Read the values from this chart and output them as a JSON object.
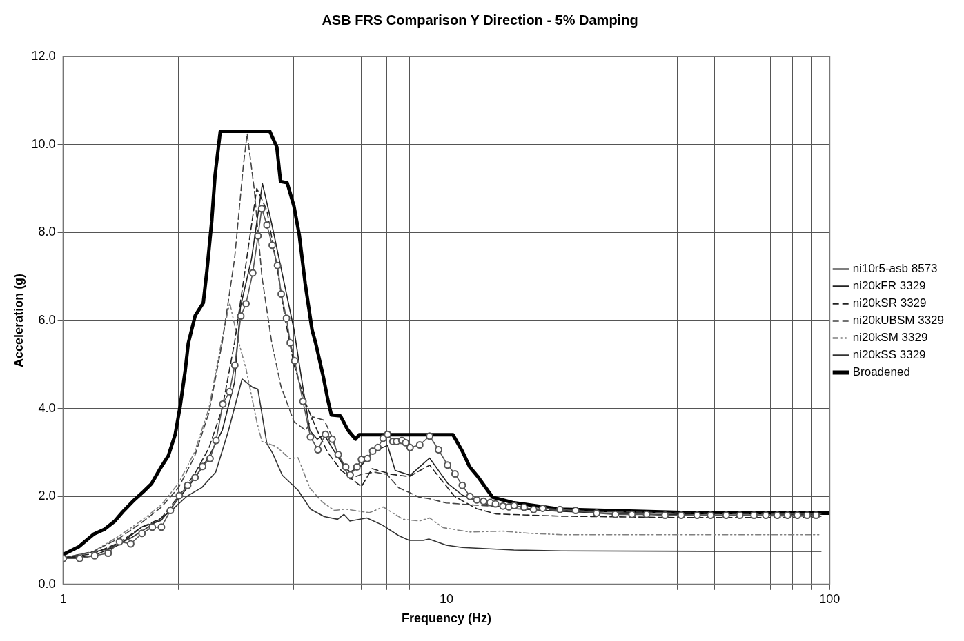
{
  "chart_data": {
    "type": "line",
    "title": "ASB FRS Comparison Y Direction - 5% Damping",
    "xlabel": "Frequency (Hz)",
    "ylabel": "Acceleration (g)",
    "log": "x",
    "grid": true,
    "legend": "right",
    "xlim": [
      1,
      100
    ],
    "xticks": [
      1,
      {
        "value": 2,
        "label": null
      },
      {
        "value": 3,
        "label": null
      },
      {
        "value": 4,
        "label": null
      },
      {
        "value": 5,
        "label": null
      },
      {
        "value": 6,
        "label": null
      },
      {
        "value": 7,
        "label": null
      },
      {
        "value": 8,
        "label": null
      },
      {
        "value": 9,
        "label": null
      },
      10,
      {
        "value": 20,
        "label": null
      },
      {
        "value": 30,
        "label": null
      },
      {
        "value": 40,
        "label": null
      },
      {
        "value": 50,
        "label": null
      },
      {
        "value": 60,
        "label": null
      },
      {
        "value": 70,
        "label": null
      },
      {
        "value": 80,
        "label": null
      },
      {
        "value": 90,
        "label": null
      },
      100
    ],
    "ylim": [
      0,
      12
    ],
    "yticks": [
      {
        "value": 0,
        "label": "0.0"
      },
      {
        "value": 2,
        "label": "2.0"
      },
      {
        "value": 4,
        "label": "4.0"
      },
      {
        "value": 6,
        "label": "6.0"
      },
      {
        "value": 8,
        "label": "8.0"
      },
      {
        "value": 10,
        "label": "10.0"
      },
      {
        "value": 12,
        "label": "12.0"
      }
    ],
    "series": [
      {
        "name": "ni10r5-asb 8573",
        "color": "#555555",
        "marker": "circle",
        "line_style": "solid",
        "x": [
          1,
          1.104,
          1.208,
          1.31,
          1.402,
          1.5,
          1.605,
          1.708,
          1.804,
          1.904,
          2.009,
          2.112,
          2.209,
          2.31,
          2.416,
          2.505,
          2.609,
          2.716,
          2.804,
          2.907,
          2.999,
          3.123,
          3.223,
          3.296,
          3.402,
          3.511,
          3.624,
          3.706,
          3.825,
          3.912,
          4.019,
          4.223,
          4.418,
          4.621,
          4.834,
          5.033,
          5.22,
          5.46,
          5.609,
          5.84,
          6.0,
          6.22,
          6.42,
          6.625,
          6.837,
          7.024,
          7.249,
          7.413,
          7.65,
          7.825,
          8.039,
          8.52,
          9.04,
          9.54,
          10.07,
          10.53,
          11.0,
          11.52,
          12.0,
          12.5,
          13.01,
          13.43,
          14.05,
          14.56,
          15.03,
          15.94,
          16.89,
          17.84,
          19.78,
          21.74,
          24.66,
          27.6,
          30.5,
          33.3,
          37.2,
          41.0,
          45.1,
          48.9,
          53.7,
          58.3,
          63.5,
          68.2,
          73.0,
          77.7,
          82.4,
          87.4,
          92.2
        ],
        "values": [
          0.59,
          0.59,
          0.65,
          0.71,
          0.97,
          0.92,
          1.16,
          1.3,
          1.3,
          1.68,
          2.02,
          2.25,
          2.43,
          2.68,
          2.86,
          3.27,
          4.1,
          4.38,
          4.98,
          6.1,
          6.38,
          7.08,
          7.92,
          8.54,
          8.17,
          7.71,
          7.25,
          6.6,
          6.05,
          5.49,
          5.08,
          4.16,
          3.35,
          3.06,
          3.41,
          3.3,
          2.95,
          2.67,
          2.49,
          2.67,
          2.84,
          2.86,
          3.03,
          3.11,
          3.32,
          3.41,
          3.25,
          3.25,
          3.27,
          3.22,
          3.11,
          3.17,
          3.37,
          3.06,
          2.71,
          2.51,
          2.25,
          2.0,
          1.92,
          1.89,
          1.86,
          1.83,
          1.78,
          1.76,
          1.79,
          1.75,
          1.7,
          1.73,
          1.7,
          1.68,
          1.62,
          1.59,
          1.59,
          1.59,
          1.57,
          1.57,
          1.57,
          1.57,
          1.57,
          1.57,
          1.57,
          1.57,
          1.57,
          1.57,
          1.57,
          1.57,
          1.57
        ]
      },
      {
        "name": "ni20kFR 3329",
        "color": "#222222",
        "marker": "none",
        "line_style": "solid",
        "x": [
          1,
          1.2,
          1.4,
          1.6,
          1.8,
          2.0,
          2.2,
          2.4,
          2.6,
          2.8,
          2.9,
          3.1,
          3.31,
          3.5,
          3.7,
          4.0,
          4.2,
          4.4,
          4.6,
          4.8,
          5.2,
          5.6,
          6.0,
          6.4,
          7.02,
          7.35,
          8.04,
          9.04,
          10.07,
          11.0,
          12,
          13,
          15,
          20,
          30,
          50,
          95
        ],
        "values": [
          0.6,
          0.65,
          0.9,
          1.3,
          1.45,
          1.95,
          2.4,
          2.9,
          3.5,
          4.6,
          6.3,
          7.4,
          9.11,
          8.2,
          7.2,
          5.8,
          4.6,
          3.5,
          3.3,
          3.4,
          2.9,
          2.55,
          2.7,
          3.0,
          3.16,
          2.59,
          2.48,
          2.87,
          2.3,
          2.03,
          1.9,
          1.8,
          1.72,
          1.66,
          1.6,
          1.57,
          1.55
        ]
      },
      {
        "name": "ni20kSR 3329",
        "color": "#222222",
        "marker": "none",
        "line_style": "dashed",
        "x": [
          1,
          1.2,
          1.4,
          1.6,
          1.8,
          2.0,
          2.2,
          2.4,
          2.6,
          2.8,
          3.0,
          3.2,
          3.4,
          3.6,
          3.8,
          4.0,
          4.3,
          4.6,
          4.9,
          5.3,
          6.0,
          6.4,
          7.2,
          8.0,
          9.04,
          10.5,
          12,
          13.5,
          20,
          40,
          95
        ],
        "values": [
          0.6,
          0.7,
          0.95,
          1.3,
          1.5,
          2.0,
          2.5,
          3.1,
          4.0,
          5.5,
          7.3,
          9.0,
          8.5,
          7.3,
          6.0,
          5.0,
          4.1,
          3.5,
          3.0,
          2.6,
          2.22,
          2.63,
          2.5,
          2.45,
          2.71,
          2.0,
          1.72,
          1.6,
          1.55,
          1.52,
          1.52
        ]
      },
      {
        "name": "ni20kUBSM 3329",
        "color": "#444444",
        "marker": "none",
        "line_style": "dashed",
        "x": [
          1,
          1.2,
          1.4,
          1.6,
          1.8,
          2.0,
          2.2,
          2.4,
          2.6,
          2.8,
          2.95,
          3.02,
          3.15,
          3.3,
          3.5,
          3.7,
          4.0,
          4.3,
          4.47,
          4.8,
          5.0,
          5.3,
          5.6,
          6.0,
          6.5,
          7.0,
          7.5,
          8.5,
          9.0,
          10,
          12,
          15,
          20,
          40,
          95
        ],
        "values": [
          0.6,
          0.75,
          1.05,
          1.4,
          1.75,
          2.2,
          2.9,
          3.9,
          5.5,
          7.4,
          9.5,
          10.25,
          9.0,
          7.0,
          5.5,
          4.5,
          3.7,
          3.5,
          3.81,
          3.73,
          3.4,
          2.8,
          2.4,
          2.5,
          2.55,
          2.5,
          2.2,
          1.98,
          1.95,
          1.85,
          1.8,
          1.75,
          1.68,
          1.62,
          1.6
        ]
      },
      {
        "name": "ni20kSM 3329",
        "color": "#808080",
        "marker": "none",
        "line_style": "dotted",
        "x": [
          1,
          1.2,
          1.4,
          1.6,
          1.8,
          2.0,
          2.2,
          2.4,
          2.6,
          2.72,
          2.85,
          3.0,
          3.2,
          3.3,
          3.6,
          3.9,
          4.1,
          4.4,
          4.75,
          5.1,
          5.46,
          5.84,
          6.3,
          6.84,
          7.7,
          8.5,
          9.04,
          9.8,
          11.5,
          14.0,
          16.5,
          20,
          40,
          95
        ],
        "values": [
          0.6,
          0.75,
          1.1,
          1.45,
          1.8,
          2.3,
          3.0,
          4.0,
          5.6,
          6.4,
          5.6,
          4.9,
          3.7,
          3.25,
          3.13,
          2.86,
          2.88,
          2.19,
          1.87,
          1.68,
          1.71,
          1.67,
          1.63,
          1.76,
          1.48,
          1.44,
          1.51,
          1.29,
          1.19,
          1.21,
          1.16,
          1.13,
          1.13,
          1.13
        ]
      },
      {
        "name": "ni20kSS 3329",
        "color": "#333333",
        "marker": "none",
        "line_style": "solid",
        "x": [
          1,
          1.3,
          1.5,
          1.7,
          1.9,
          2.1,
          2.3,
          2.5,
          2.7,
          2.93,
          3.12,
          3.22,
          3.4,
          3.52,
          3.73,
          4.1,
          4.42,
          4.8,
          5.2,
          5.4,
          5.6,
          6.2,
          6.8,
          7.5,
          8.0,
          8.7,
          9.0,
          10,
          11,
          15,
          20,
          50,
          95
        ],
        "values": [
          0.6,
          0.8,
          1.05,
          1.35,
          1.65,
          2.0,
          2.2,
          2.55,
          3.5,
          4.67,
          4.48,
          4.44,
          3.2,
          2.98,
          2.48,
          2.14,
          1.71,
          1.54,
          1.48,
          1.59,
          1.44,
          1.51,
          1.35,
          1.11,
          1.0,
          1.0,
          1.03,
          0.89,
          0.84,
          0.78,
          0.76,
          0.75,
          0.75
        ]
      },
      {
        "name": "Broadened",
        "color": "#000000",
        "marker": "none",
        "line_style": "solid",
        "x": [
          1,
          1.1,
          1.2,
          1.28,
          1.36,
          1.43,
          1.52,
          1.62,
          1.7,
          1.79,
          1.88,
          1.96,
          2.02,
          2.08,
          2.12,
          2.21,
          2.32,
          2.37,
          2.44,
          2.49,
          2.57,
          3.46,
          3.61,
          3.69,
          3.84,
          4.0,
          4.13,
          4.28,
          4.46,
          4.56,
          4.77,
          4.9,
          5.01,
          5.29,
          5.53,
          5.79,
          5.92,
          10.4,
          11.0,
          11.5,
          12.05,
          13.2,
          14.9,
          19.8,
          42.5,
          100
        ],
        "values": [
          0.68,
          0.86,
          1.14,
          1.25,
          1.43,
          1.65,
          1.89,
          2.11,
          2.29,
          2.63,
          2.92,
          3.41,
          4.06,
          4.84,
          5.48,
          6.11,
          6.4,
          7.11,
          8.24,
          9.3,
          10.3,
          10.3,
          9.94,
          9.16,
          9.13,
          8.6,
          7.95,
          6.84,
          5.79,
          5.48,
          4.73,
          4.21,
          3.85,
          3.83,
          3.51,
          3.3,
          3.4,
          3.4,
          3.03,
          2.67,
          2.46,
          1.98,
          1.86,
          1.71,
          1.63,
          1.62
        ]
      }
    ]
  }
}
